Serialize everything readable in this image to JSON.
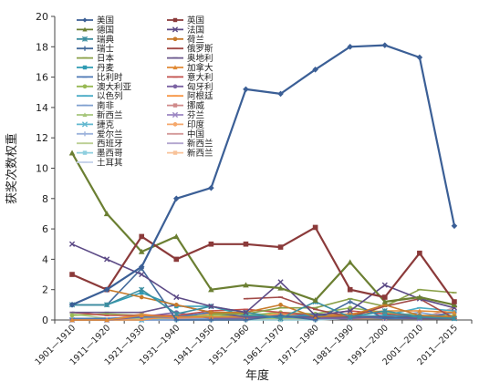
{
  "chart_data": {
    "type": "line",
    "xlabel": "年度",
    "ylabel": "获奖次数权重",
    "ylim": [
      0,
      20
    ],
    "yticks": [
      0,
      2,
      4,
      6,
      8,
      10,
      12,
      14,
      16,
      18,
      20
    ],
    "grid": false,
    "legend_position": "top-left, inside plot, two columns",
    "categories": [
      "1901—1910",
      "1911—1920",
      "1921—1930",
      "1931—1940",
      "1941—1950",
      "1951—1960",
      "1961—1970",
      "1971—1980",
      "1981—1990",
      "1991—2000",
      "2001—2010",
      "2011—2015"
    ],
    "series": [
      {
        "name": "美国",
        "color": "#3b5f96",
        "marker": "diamond",
        "values": [
          1,
          2,
          3.5,
          8,
          8.7,
          15.2,
          14.9,
          16.5,
          18,
          18.1,
          17.3,
          6.2
        ]
      },
      {
        "name": "英国",
        "color": "#8b3a3a",
        "marker": "square",
        "values": [
          3,
          2,
          5.5,
          4,
          5,
          5,
          4.8,
          6.1,
          2,
          1.5,
          4.4,
          1.2
        ]
      },
      {
        "name": "德国",
        "color": "#6b7f32",
        "marker": "triangle",
        "values": [
          11,
          7,
          4.5,
          5.5,
          2,
          2.3,
          2.1,
          1.3,
          3.8,
          1.2,
          1.5,
          1
        ]
      },
      {
        "name": "法国",
        "color": "#5c4a86",
        "marker": "x",
        "values": [
          5,
          4,
          3,
          1.5,
          0.9,
          0.5,
          2.5,
          0.3,
          0.6,
          2.3,
          1.4,
          0.8
        ]
      },
      {
        "name": "瑞典",
        "color": "#3b8ea0",
        "marker": "star",
        "values": [
          1,
          1,
          2,
          0.4,
          0.9,
          0.5,
          0.1,
          1.2,
          0.2,
          0.6,
          0.2,
          0.1
        ]
      },
      {
        "name": "荷兰",
        "color": "#c87a2a",
        "marker": "circle",
        "values": [
          3,
          2,
          1.5,
          1,
          0.5,
          0.5,
          1,
          0.2,
          0.3,
          1,
          0.3,
          0.2
        ]
      },
      {
        "name": "瑞士",
        "color": "#456b9c",
        "marker": "plus",
        "values": [
          1,
          1,
          3.4,
          0,
          0,
          0,
          0.3,
          0,
          1.2,
          0.1,
          0.3,
          0.2
        ]
      },
      {
        "name": "俄罗斯",
        "color": "#a24a47",
        "marker": "dash",
        "values": [
          null,
          null,
          null,
          null,
          null,
          1.4,
          1.5,
          0.7,
          0.2,
          0.9,
          1.4,
          0.1
        ]
      },
      {
        "name": "日本",
        "color": "#8aa048",
        "marker": "dash",
        "values": [
          null,
          null,
          null,
          null,
          0.4,
          0.4,
          0.8,
          0.8,
          1.4,
          0.9,
          2,
          1.8
        ]
      },
      {
        "name": "奥地利",
        "color": "#6a578c",
        "marker": "dash",
        "values": [
          0.5,
          0.5,
          0.5,
          1,
          0.5,
          0.2,
          0.2,
          0.2,
          0.2,
          0.2,
          0.1,
          0.1
        ]
      },
      {
        "name": "丹麦",
        "color": "#2f9bb3",
        "marker": "square",
        "values": [
          1,
          1,
          1.8,
          0.9,
          0.9,
          0.3,
          0.2,
          0.3,
          0.2,
          0.3,
          0.2,
          0.1
        ]
      },
      {
        "name": "加拿大",
        "color": "#e08a34",
        "marker": "triangle",
        "values": [
          0,
          0,
          0.3,
          0.2,
          0.2,
          0.2,
          0.2,
          0.3,
          0.4,
          0.6,
          0.6,
          0.5
        ]
      },
      {
        "name": "比利时",
        "color": "#4d78b5",
        "marker": "dash",
        "values": [
          0.1,
          0.1,
          0.2,
          0.2,
          0.5,
          0.2,
          0.2,
          0.4,
          0.2,
          0.1,
          0.1,
          0.5
        ]
      },
      {
        "name": "意大利",
        "color": "#c2504c",
        "marker": "dash",
        "values": [
          0.5,
          0.3,
          0.3,
          0.3,
          0.6,
          0.7,
          0.5,
          0.3,
          0.6,
          0.4,
          0.2,
          0.1
        ]
      },
      {
        "name": "澳大利亚",
        "color": "#98b954",
        "marker": "circle",
        "values": [
          0.3,
          0.4,
          0.3,
          0.2,
          0.3,
          0.3,
          0.5,
          0.4,
          0.8,
          0.5,
          0.3,
          0.3
        ]
      },
      {
        "name": "匈牙利",
        "color": "#7c64a4",
        "marker": "circle",
        "values": [
          0,
          0,
          0.2,
          0.5,
          0.1,
          0.1,
          0.3,
          0.1,
          0.1,
          0.2,
          0.1,
          0.1
        ]
      },
      {
        "name": "以色列",
        "color": "#4bacc6",
        "marker": "dash",
        "values": [
          null,
          null,
          null,
          null,
          null,
          0.1,
          0.2,
          0.1,
          0.1,
          0.3,
          0.8,
          0.6
        ]
      },
      {
        "name": "阿根廷",
        "color": "#f79646",
        "marker": "dash",
        "values": [
          0,
          0,
          0,
          0.3,
          0.4,
          0.2,
          0.4,
          0.2,
          0.1,
          0.1,
          0.1,
          0.1
        ]
      },
      {
        "name": "南非",
        "color": "#7f9fcf",
        "marker": "dash",
        "values": [
          0,
          0,
          0,
          0,
          0.1,
          0.2,
          0.2,
          0.1,
          0.1,
          0.2,
          0.5,
          0.1
        ]
      },
      {
        "name": "挪威",
        "color": "#d08a8a",
        "marker": "square",
        "values": [
          0,
          0,
          0.2,
          0.1,
          0.2,
          0.1,
          0.4,
          0.2,
          0.2,
          0.1,
          0.2,
          0.5
        ]
      },
      {
        "name": "新西兰",
        "color": "#a6c67b",
        "marker": "triangle",
        "values": [
          0,
          0,
          0.1,
          0.1,
          0.1,
          0.1,
          0.1,
          0.1,
          0.1,
          0.1,
          0.3,
          0.1
        ]
      },
      {
        "name": "芬兰",
        "color": "#9b86c2",
        "marker": "x",
        "values": [
          0,
          0,
          0.1,
          0.2,
          0.1,
          0.1,
          0.1,
          0.1,
          0.1,
          0.1,
          0.1,
          0.1
        ]
      },
      {
        "name": "捷克",
        "color": "#62b8cf",
        "marker": "x",
        "values": [
          0,
          0,
          0,
          0.1,
          0.1,
          0.5,
          0.2,
          0.1,
          0.1,
          0.1,
          0.1,
          0.1
        ]
      },
      {
        "name": "印度",
        "color": "#f5a86c",
        "marker": "circle",
        "values": [
          0,
          0,
          0.4,
          0.1,
          0.1,
          0.1,
          0.1,
          0.1,
          0.1,
          0.1,
          0.3,
          0.1
        ]
      },
      {
        "name": "爱尔兰",
        "color": "#9db3dc",
        "marker": "plus",
        "values": [
          0,
          0,
          0,
          0,
          0,
          0.1,
          0.1,
          0.1,
          0.1,
          0.2,
          0.1,
          0.1
        ]
      },
      {
        "name": "中国",
        "color": "#d49a9a",
        "marker": "dash",
        "values": [
          null,
          null,
          null,
          null,
          null,
          0.3,
          0.1,
          0.1,
          0.1,
          0.1,
          0.1,
          0.8
        ]
      },
      {
        "name": "西班牙",
        "color": "#bccf94",
        "marker": "dash",
        "values": [
          0.4,
          0.1,
          0.1,
          0.1,
          0.1,
          0.3,
          0.1,
          0.1,
          0.1,
          0.1,
          0.1,
          0.1
        ]
      },
      {
        "name": "新西兰",
        "color": "#b3a6cf",
        "marker": "dash",
        "values": [
          0,
          0,
          0,
          0,
          0.1,
          0.1,
          0.1,
          0.1,
          0.1,
          0.1,
          0.1,
          0.1
        ]
      },
      {
        "name": "墨西哥",
        "color": "#8fcfdf",
        "marker": "square",
        "values": [
          0,
          0,
          0,
          0,
          0,
          0,
          0,
          0,
          0.1,
          0.6,
          0.1,
          0.1
        ]
      },
      {
        "name": "新西兰",
        "color": "#f8c39a",
        "marker": "square",
        "values": [
          0,
          0,
          0,
          0,
          0,
          0,
          0,
          0,
          0.1,
          0.1,
          0.1,
          0.2
        ]
      },
      {
        "name": "土耳其",
        "color": "#c3d0ea",
        "marker": "dash",
        "values": [
          null,
          null,
          null,
          null,
          null,
          null,
          null,
          null,
          null,
          null,
          0.1,
          0.1
        ]
      }
    ]
  }
}
